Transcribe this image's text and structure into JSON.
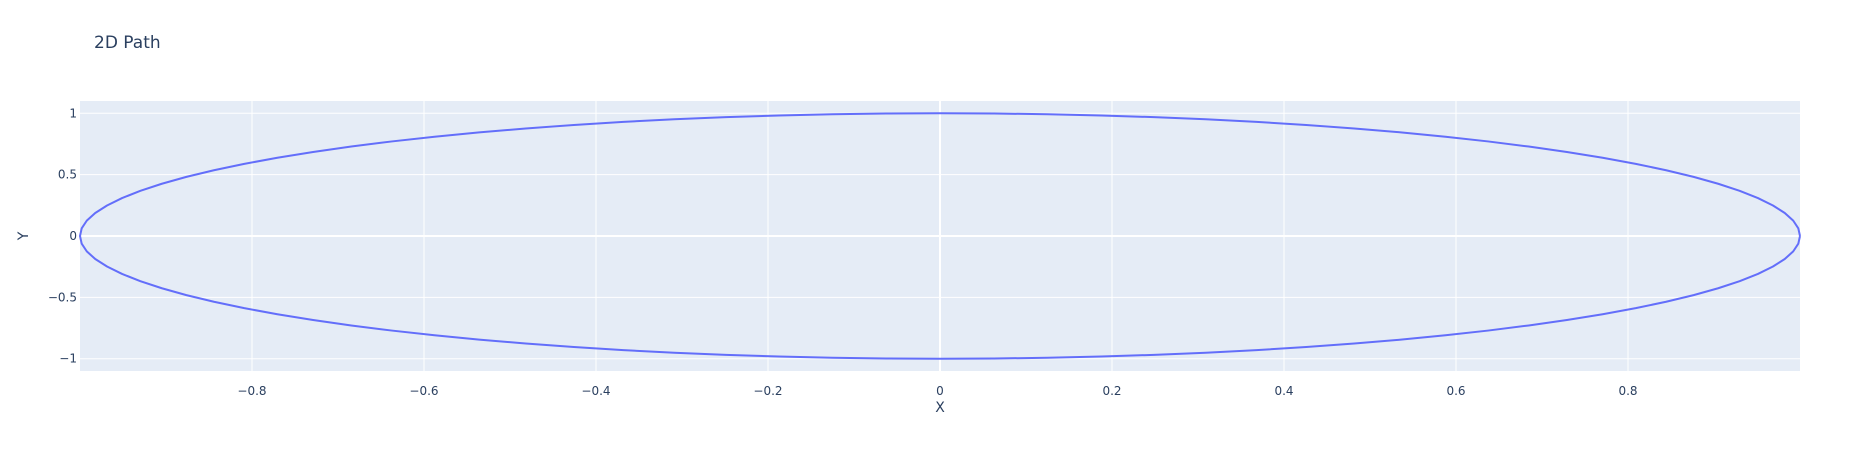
{
  "chart_data": {
    "type": "line",
    "title": "2D Path",
    "xlabel": "X",
    "ylabel": "Y",
    "xlim": [
      -1.0,
      1.0
    ],
    "ylim": [
      -1.1,
      1.1
    ],
    "xticks": [
      -0.8,
      -0.6,
      -0.4,
      -0.2,
      0,
      0.2,
      0.4,
      0.6,
      0.8
    ],
    "yticks": [
      -1,
      -0.5,
      0,
      0.5,
      1
    ],
    "xtick_labels": [
      "−0.8",
      "−0.6",
      "−0.4",
      "−0.2",
      "0",
      "0.2",
      "0.4",
      "0.6",
      "0.8"
    ],
    "ytick_labels": [
      "−1",
      "−0.5",
      "0",
      "0.5",
      "1"
    ],
    "grid": true,
    "series": [
      {
        "shape": "closed path tracing the unit circle x = cos(t), y = sin(t), t from 0 to 2π",
        "color": "#636efa"
      }
    ]
  },
  "colors": {
    "plot_background": "#e5ecf6",
    "gridline": "#ffffff",
    "text": "#2a3f5f",
    "line": "#636efa"
  }
}
